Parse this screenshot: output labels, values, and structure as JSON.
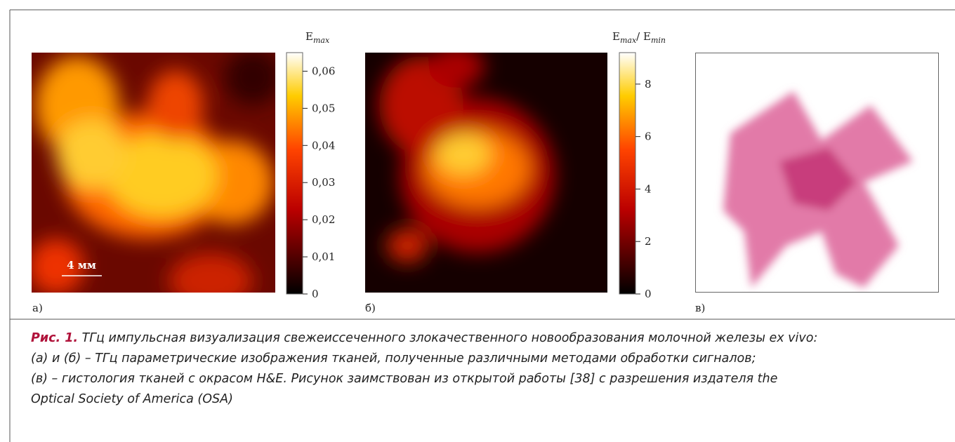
{
  "panels": [
    {
      "label": "а)",
      "colorbar": {
        "title": [
          {
            "text": "E"
          },
          {
            "sub": "max"
          }
        ],
        "range": [
          0,
          0.065
        ],
        "ticks": [
          {
            "value": 0,
            "label": "0"
          },
          {
            "value": 0.01,
            "label": "0,01"
          },
          {
            "value": 0.02,
            "label": "0,02"
          },
          {
            "value": 0.03,
            "label": "0,03"
          },
          {
            "value": 0.04,
            "label": "0,04"
          },
          {
            "value": 0.05,
            "label": "0,05"
          },
          {
            "value": 0.06,
            "label": "0,06"
          }
        ]
      },
      "scale_bar": "4 мм"
    },
    {
      "label": "б)",
      "colorbar": {
        "title": [
          {
            "text": "E"
          },
          {
            "sub": "max"
          },
          {
            "text": "/ E"
          },
          {
            "sub": "min"
          }
        ],
        "range": [
          0,
          9.2
        ],
        "ticks": [
          {
            "value": 0,
            "label": "0"
          },
          {
            "value": 2,
            "label": "2"
          },
          {
            "value": 4,
            "label": "4"
          },
          {
            "value": 6,
            "label": "6"
          },
          {
            "value": 8,
            "label": "8"
          }
        ]
      }
    },
    {
      "label": "в)"
    }
  ],
  "caption": {
    "label": "Рис. 1.",
    "lines": [
      "ТГц импульсная визуализация свежеиссеченного злокачественного новообразования молочной железы ex vivo:",
      "(а) и (б) – ТГц параметрические изображения тканей, полученные различными методами обработки сигналов;",
      "(в) – гистология тканей с окрасом H&E. Рисунок заимствован из открытой работы [38] с разрешения издателя the",
      "Optical Society of America (OSA)"
    ]
  }
}
